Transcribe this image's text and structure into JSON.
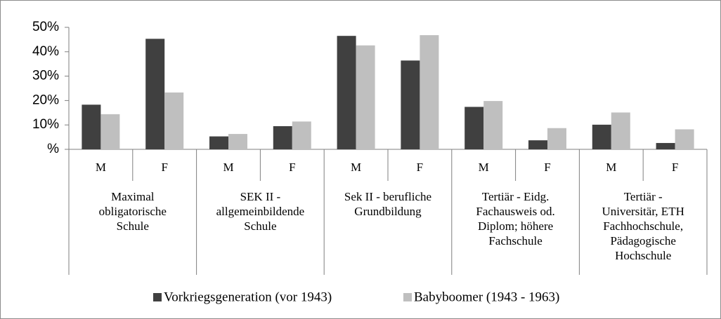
{
  "chart_data": {
    "type": "bar",
    "categories": [
      "M",
      "F",
      "M",
      "F",
      "M",
      "F",
      "M",
      "F",
      "M",
      "F"
    ],
    "groups": [
      {
        "label": [
          "Maximal",
          "obligatorische",
          "Schule"
        ]
      },
      {
        "label": [
          "SEK II -",
          "allgemeinbildende",
          "Schule"
        ]
      },
      {
        "label": [
          "Sek II - berufliche",
          "Grundbildung"
        ]
      },
      {
        "label": [
          "Tertiär - Eidg.",
          "Fachausweis od.",
          "Diplom; höhere",
          "Fachschule"
        ]
      },
      {
        "label": [
          "Tertiär -",
          "Universitär, ETH",
          "Fachhochschule,",
          "Pädagogische",
          "Hochschule"
        ]
      }
    ],
    "series": [
      {
        "name": "Vorkriegsgeneration (vor 1943)",
        "color": "#404040",
        "values": [
          18.3,
          45.3,
          5.3,
          9.5,
          46.5,
          36.4,
          17.4,
          3.7,
          10.1,
          2.6
        ]
      },
      {
        "name": "Babyboomer (1943 - 1963)",
        "color": "#bfbfbf",
        "values": [
          14.4,
          23.3,
          6.3,
          11.4,
          42.6,
          46.8,
          19.8,
          8.7,
          15.1,
          8.2
        ]
      }
    ],
    "ylim": [
      0,
      50
    ],
    "yticks": [
      {
        "value": 0,
        "label": "%"
      },
      {
        "value": 10,
        "label": "10%"
      },
      {
        "value": 20,
        "label": "20%"
      },
      {
        "value": 30,
        "label": "30%"
      },
      {
        "value": 40,
        "label": "40%"
      },
      {
        "value": 50,
        "label": "50%"
      }
    ],
    "grid": false,
    "legend": "bottom"
  }
}
